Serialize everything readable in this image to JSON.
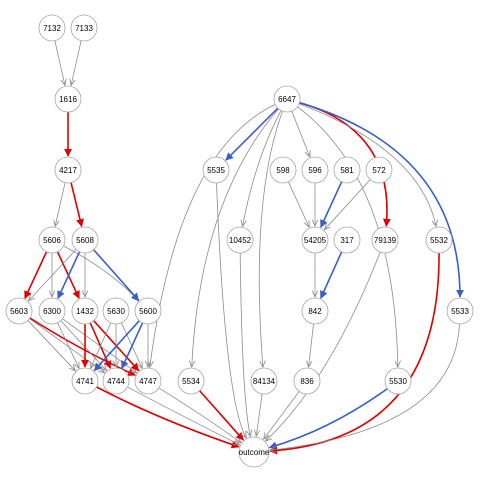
{
  "colors": {
    "edge_default": "#8c8c8c",
    "edge_red": "#e00000",
    "edge_blue": "#3a5fc8",
    "node_fill": "#ffffff",
    "node_stroke": "#a6a6a6",
    "label": "#000000"
  },
  "nodes": [
    {
      "id": "n7132",
      "label": "7132"
    },
    {
      "id": "n7133",
      "label": "7133"
    },
    {
      "id": "n1616",
      "label": "1616"
    },
    {
      "id": "n4217",
      "label": "4217"
    },
    {
      "id": "n5606",
      "label": "5606"
    },
    {
      "id": "n5608",
      "label": "5608"
    },
    {
      "id": "n5603",
      "label": "5603"
    },
    {
      "id": "n6300",
      "label": "6300"
    },
    {
      "id": "n1432",
      "label": "1432"
    },
    {
      "id": "n5630",
      "label": "5630"
    },
    {
      "id": "n5600",
      "label": "5600"
    },
    {
      "id": "n4741",
      "label": "4741"
    },
    {
      "id": "n4744",
      "label": "4744"
    },
    {
      "id": "n4747",
      "label": "4747"
    },
    {
      "id": "n5534",
      "label": "5534"
    },
    {
      "id": "n6647",
      "label": "6647"
    },
    {
      "id": "n5535",
      "label": "5535"
    },
    {
      "id": "n598",
      "label": "598"
    },
    {
      "id": "n596",
      "label": "596"
    },
    {
      "id": "n581",
      "label": "581"
    },
    {
      "id": "n572",
      "label": "572"
    },
    {
      "id": "n10452",
      "label": "10452"
    },
    {
      "id": "n54205",
      "label": "54205"
    },
    {
      "id": "n317",
      "label": "317"
    },
    {
      "id": "n79139",
      "label": "79139"
    },
    {
      "id": "n5532",
      "label": "5532"
    },
    {
      "id": "n842",
      "label": "842"
    },
    {
      "id": "n5533",
      "label": "5533"
    },
    {
      "id": "n84134",
      "label": "84134"
    },
    {
      "id": "n836",
      "label": "836"
    },
    {
      "id": "n5530",
      "label": "5530"
    },
    {
      "id": "noutcome",
      "label": "outcome"
    }
  ],
  "edges": [
    {
      "from": "n7132",
      "to": "n1616",
      "color": "default"
    },
    {
      "from": "n7133",
      "to": "n1616",
      "color": "default"
    },
    {
      "from": "n1616",
      "to": "n4217",
      "color": "red"
    },
    {
      "from": "n4217",
      "to": "n5606",
      "color": "default"
    },
    {
      "from": "n4217",
      "to": "n5608",
      "color": "red"
    },
    {
      "from": "n5606",
      "to": "n5603",
      "color": "red"
    },
    {
      "from": "n5606",
      "to": "n6300",
      "color": "default"
    },
    {
      "from": "n5606",
      "to": "n1432",
      "color": "red"
    },
    {
      "from": "n5606",
      "to": "n5600",
      "color": "default"
    },
    {
      "from": "n5608",
      "to": "n6300",
      "color": "blue"
    },
    {
      "from": "n5608",
      "to": "n1432",
      "color": "default"
    },
    {
      "from": "n5608",
      "to": "n5600",
      "color": "blue"
    },
    {
      "from": "n5608",
      "to": "n5603",
      "color": "default"
    },
    {
      "from": "n5603",
      "to": "n4741",
      "color": "default"
    },
    {
      "from": "n5603",
      "to": "n4744",
      "color": "default"
    },
    {
      "from": "n5603",
      "to": "n4747",
      "color": "red"
    },
    {
      "from": "n6300",
      "to": "n4741",
      "color": "default"
    },
    {
      "from": "n6300",
      "to": "n4744",
      "color": "default"
    },
    {
      "from": "n6300",
      "to": "n4747",
      "color": "default"
    },
    {
      "from": "n1432",
      "to": "n4741",
      "color": "red"
    },
    {
      "from": "n1432",
      "to": "n4744",
      "color": "red"
    },
    {
      "from": "n1432",
      "to": "n4747",
      "color": "red"
    },
    {
      "from": "n5630",
      "to": "n4741",
      "color": "default"
    },
    {
      "from": "n5630",
      "to": "n4744",
      "color": "default"
    },
    {
      "from": "n5630",
      "to": "n4747",
      "color": "default"
    },
    {
      "from": "n5600",
      "to": "n4741",
      "color": "blue"
    },
    {
      "from": "n5600",
      "to": "n4744",
      "color": "blue"
    },
    {
      "from": "n5600",
      "to": "n4747",
      "color": "default"
    },
    {
      "from": "n4741",
      "to": "noutcome",
      "color": "red"
    },
    {
      "from": "n4744",
      "to": "noutcome",
      "color": "default"
    },
    {
      "from": "n4747",
      "to": "noutcome",
      "color": "default"
    },
    {
      "from": "n5534",
      "to": "noutcome",
      "color": "red"
    },
    {
      "from": "n6647",
      "to": "n5535",
      "color": "blue"
    },
    {
      "from": "n6647",
      "to": "n10452",
      "color": "default"
    },
    {
      "from": "n6647",
      "to": "n596",
      "color": "default"
    },
    {
      "from": "n6647",
      "to": "n79139",
      "color": "red"
    },
    {
      "from": "n6647",
      "to": "n5532",
      "color": "default"
    },
    {
      "from": "n6647",
      "to": "n5533",
      "color": "blue"
    },
    {
      "from": "n6647",
      "to": "n4747",
      "color": "default"
    },
    {
      "from": "n6647",
      "to": "n5534",
      "color": "default"
    },
    {
      "from": "n6647",
      "to": "n84134",
      "color": "default"
    },
    {
      "from": "n6647",
      "to": "n5530",
      "color": "default"
    },
    {
      "from": "n598",
      "to": "n54205",
      "color": "default"
    },
    {
      "from": "n596",
      "to": "n54205",
      "color": "default"
    },
    {
      "from": "n581",
      "to": "n54205",
      "color": "blue"
    },
    {
      "from": "n572",
      "to": "n54205",
      "color": "default"
    },
    {
      "from": "n54205",
      "to": "n842",
      "color": "default"
    },
    {
      "from": "n317",
      "to": "n842",
      "color": "blue"
    },
    {
      "from": "n842",
      "to": "n836",
      "color": "default"
    },
    {
      "from": "n5535",
      "to": "noutcome",
      "color": "default"
    },
    {
      "from": "n10452",
      "to": "noutcome",
      "color": "default"
    },
    {
      "from": "n84134",
      "to": "noutcome",
      "color": "default"
    },
    {
      "from": "n836",
      "to": "noutcome",
      "color": "default"
    },
    {
      "from": "n79139",
      "to": "noutcome",
      "color": "default"
    },
    {
      "from": "n5530",
      "to": "noutcome",
      "color": "blue"
    },
    {
      "from": "n5532",
      "to": "noutcome",
      "color": "red"
    },
    {
      "from": "n5533",
      "to": "noutcome",
      "color": "default"
    }
  ]
}
